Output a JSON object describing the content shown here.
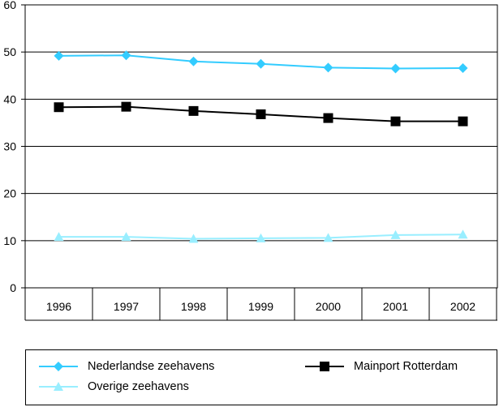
{
  "chart_data": {
    "type": "line",
    "categories": [
      "1996",
      "1997",
      "1998",
      "1999",
      "2000",
      "2001",
      "2002"
    ],
    "ylim": [
      0,
      60
    ],
    "yticks": [
      "0",
      "10",
      "20",
      "30",
      "40",
      "50",
      "60"
    ],
    "grid": true,
    "legend_position": "bottom",
    "series": [
      {
        "name": "Nederlandse zeehavens",
        "color": "#33CCFF",
        "marker": "diamond",
        "values": [
          49.2,
          49.3,
          48.0,
          47.5,
          46.7,
          46.5,
          46.6
        ]
      },
      {
        "name": "Mainport Rotterdam",
        "color": "#000000",
        "marker": "square",
        "values": [
          38.3,
          38.4,
          37.5,
          36.8,
          36.0,
          35.3,
          35.3
        ]
      },
      {
        "name": "Overige zeehavens",
        "color": "#99EEFF",
        "marker": "triangle",
        "values": [
          10.8,
          10.8,
          10.4,
          10.5,
          10.6,
          11.2,
          11.3
        ]
      }
    ]
  }
}
